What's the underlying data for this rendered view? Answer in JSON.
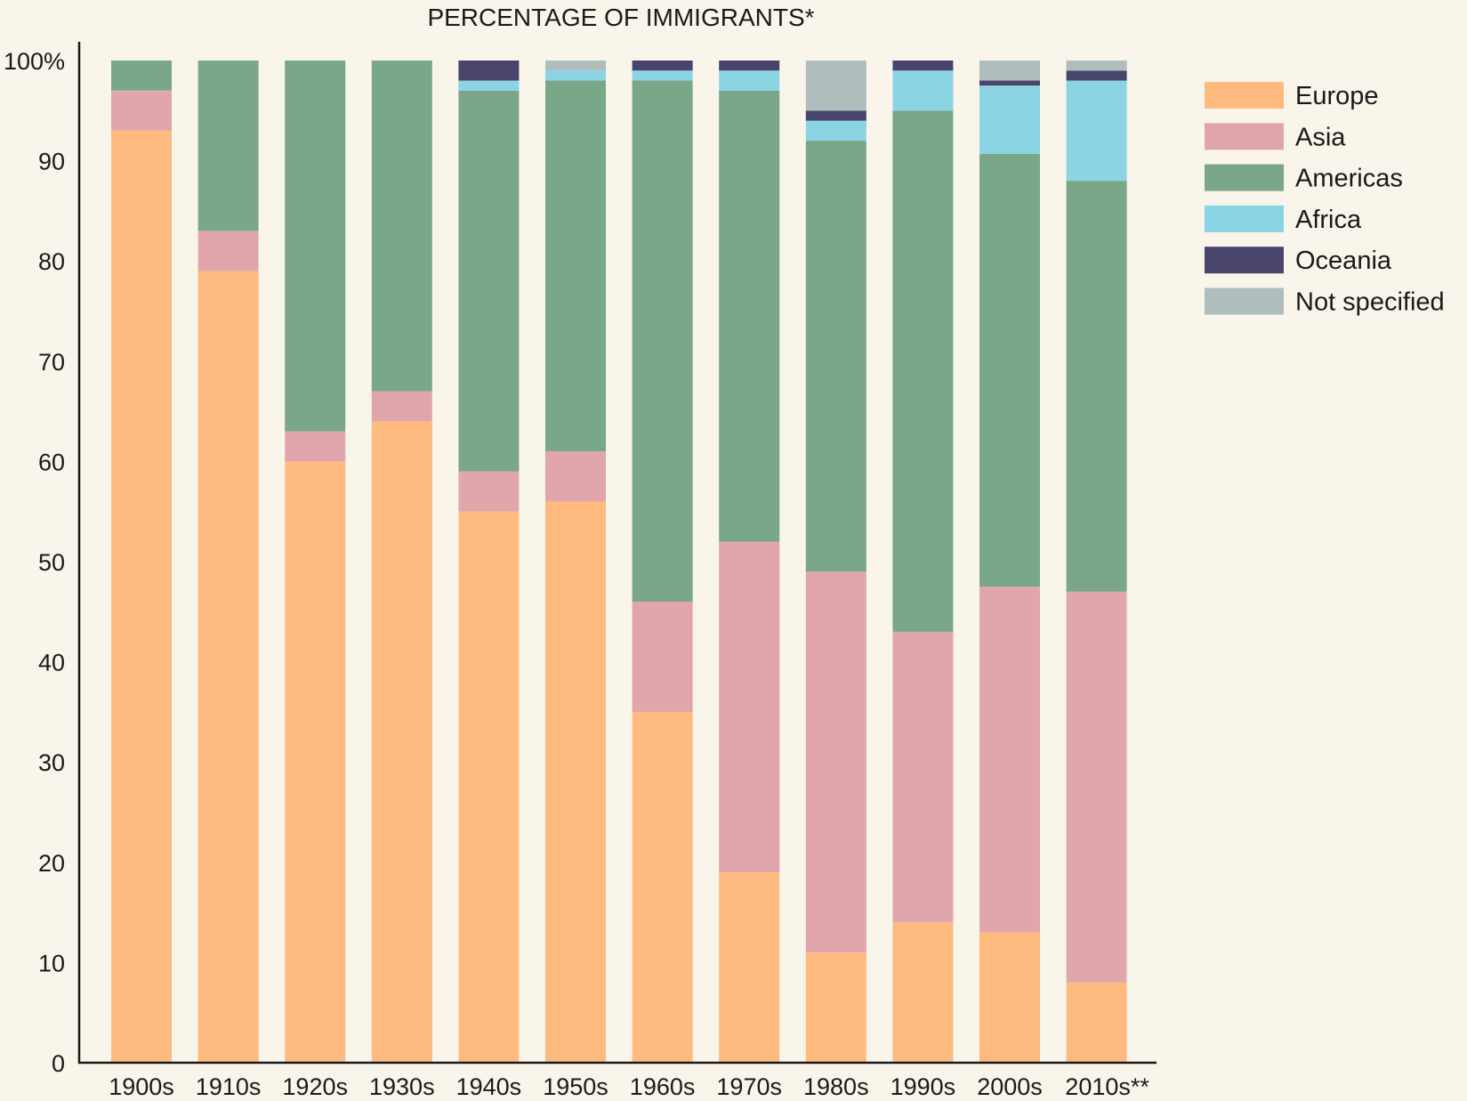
{
  "chart_data": {
    "type": "bar",
    "stacked": true,
    "title": "PERCENTAGE OF IMMIGRANTS*",
    "xlabel": "",
    "ylabel": "",
    "ylim": [
      0,
      100
    ],
    "yticks": [
      0,
      10,
      20,
      30,
      40,
      50,
      60,
      70,
      80,
      90,
      100
    ],
    "ytick_labels": [
      "0",
      "10",
      "20",
      "30",
      "40",
      "50",
      "60",
      "70",
      "80",
      "90",
      "100%"
    ],
    "grid": false,
    "legend_position": "top-right",
    "categories": [
      "1900s",
      "1910s",
      "1920s",
      "1930s",
      "1940s",
      "1950s",
      "1960s",
      "1970s",
      "1980s",
      "1990s",
      "2000s",
      "2010s**"
    ],
    "series": [
      {
        "name": "Europe",
        "color": "#ffba7f",
        "values": [
          93,
          79,
          60,
          64,
          55,
          56,
          35,
          19,
          11,
          14,
          13,
          8
        ]
      },
      {
        "name": "Asia",
        "color": "#e0a6ac",
        "values": [
          4,
          4,
          3,
          3,
          4,
          5,
          11,
          33,
          38,
          29,
          34.5,
          39
        ]
      },
      {
        "name": "Americas",
        "color": "#7aa689",
        "values": [
          3,
          17,
          37,
          33,
          38,
          37,
          52,
          45,
          43,
          52,
          43.2,
          41
        ]
      },
      {
        "name": "Africa",
        "color": "#8bd4e3",
        "values": [
          0,
          0,
          0,
          0,
          1,
          1,
          1,
          2,
          2,
          4,
          6.8,
          10
        ]
      },
      {
        "name": "Oceania",
        "color": "#48446b",
        "values": [
          0,
          0,
          0,
          0,
          2,
          0,
          1,
          1,
          1,
          1,
          0.5,
          1
        ]
      },
      {
        "name": "Not specified",
        "color": "#b0bdbd",
        "values": [
          0,
          0,
          0,
          0,
          0,
          1,
          0,
          0,
          5,
          0,
          2,
          1
        ]
      }
    ]
  }
}
